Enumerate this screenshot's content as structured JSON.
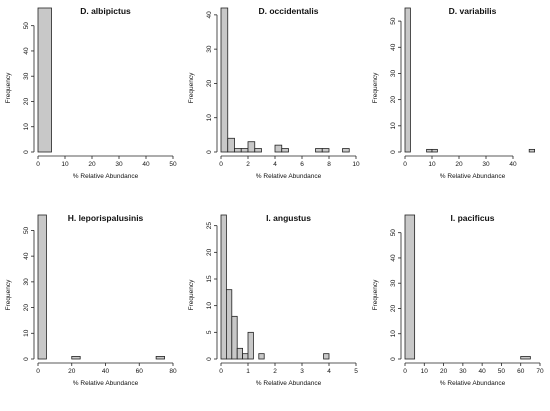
{
  "chart_data": [
    {
      "type": "bar",
      "title": "D. albipictus",
      "xlabel": "% Relative Abundance",
      "ylabel": "Frequency",
      "xlim": [
        0,
        50
      ],
      "ylim": [
        0,
        57
      ],
      "xticks": [
        0,
        10,
        20,
        30,
        40,
        50
      ],
      "yticks": [
        0,
        10,
        20,
        30,
        40,
        50
      ],
      "bins": [
        {
          "x0": 0,
          "x1": 5,
          "count": 57
        }
      ]
    },
    {
      "type": "bar",
      "title": "D. occidentalis",
      "xlabel": "% Relative Abundance",
      "ylabel": "Frequency",
      "xlim": [
        0,
        10
      ],
      "ylim": [
        0,
        42
      ],
      "xticks": [
        0,
        2,
        4,
        6,
        8,
        10
      ],
      "yticks": [
        0,
        10,
        20,
        30,
        40
      ],
      "bins": [
        {
          "x0": 0,
          "x1": 0.5,
          "count": 42
        },
        {
          "x0": 0.5,
          "x1": 1,
          "count": 4
        },
        {
          "x0": 1,
          "x1": 1.5,
          "count": 1
        },
        {
          "x0": 1.5,
          "x1": 2,
          "count": 1
        },
        {
          "x0": 2,
          "x1": 2.5,
          "count": 3
        },
        {
          "x0": 2.5,
          "x1": 3,
          "count": 1
        },
        {
          "x0": 4,
          "x1": 4.5,
          "count": 2
        },
        {
          "x0": 4.5,
          "x1": 5,
          "count": 1
        },
        {
          "x0": 7,
          "x1": 7.5,
          "count": 1
        },
        {
          "x0": 7.5,
          "x1": 8,
          "count": 1
        },
        {
          "x0": 9,
          "x1": 9.5,
          "count": 1
        }
      ]
    },
    {
      "type": "bar",
      "title": "D. variabilis",
      "xlabel": "% Relative Abundance",
      "ylabel": "Frequency",
      "xlim": [
        0,
        50
      ],
      "ylim": [
        0,
        55
      ],
      "xticks": [
        0,
        10,
        20,
        30,
        40
      ],
      "yticks": [
        0,
        10,
        20,
        30,
        40,
        50
      ],
      "bins": [
        {
          "x0": 0,
          "x1": 2,
          "count": 55
        },
        {
          "x0": 8,
          "x1": 10,
          "count": 1
        },
        {
          "x0": 10,
          "x1": 12,
          "count": 1
        },
        {
          "x0": 46,
          "x1": 48,
          "count": 1
        }
      ]
    },
    {
      "type": "bar",
      "title": "H. leporispalusinis",
      "xlabel": "% Relative Abundance",
      "ylabel": "Frequency",
      "xlim": [
        0,
        80
      ],
      "ylim": [
        0,
        56
      ],
      "xticks": [
        0,
        20,
        40,
        60,
        80
      ],
      "yticks": [
        0,
        10,
        20,
        30,
        40,
        50
      ],
      "bins": [
        {
          "x0": 0,
          "x1": 5,
          "count": 56
        },
        {
          "x0": 20,
          "x1": 25,
          "count": 1
        },
        {
          "x0": 70,
          "x1": 75,
          "count": 1
        }
      ]
    },
    {
      "type": "bar",
      "title": "I. angustus",
      "xlabel": "% Relative Abundance",
      "ylabel": "Frequency",
      "xlim": [
        0,
        5
      ],
      "ylim": [
        0,
        27
      ],
      "xticks": [
        0,
        1,
        2,
        3,
        4,
        5
      ],
      "yticks": [
        0,
        5,
        10,
        15,
        20,
        25
      ],
      "bins": [
        {
          "x0": 0,
          "x1": 0.2,
          "count": 27
        },
        {
          "x0": 0.2,
          "x1": 0.4,
          "count": 13
        },
        {
          "x0": 0.4,
          "x1": 0.6,
          "count": 8
        },
        {
          "x0": 0.6,
          "x1": 0.8,
          "count": 2
        },
        {
          "x0": 0.8,
          "x1": 1.0,
          "count": 1
        },
        {
          "x0": 1.0,
          "x1": 1.2,
          "count": 5
        },
        {
          "x0": 1.4,
          "x1": 1.6,
          "count": 1
        },
        {
          "x0": 3.8,
          "x1": 4.0,
          "count": 1
        }
      ]
    },
    {
      "type": "bar",
      "title": "I. pacificus",
      "xlabel": "% Relative Abundance",
      "ylabel": "Frequency",
      "xlim": [
        0,
        70
      ],
      "ylim": [
        0,
        57
      ],
      "xticks": [
        0,
        10,
        20,
        30,
        40,
        50,
        60,
        70
      ],
      "yticks": [
        0,
        10,
        20,
        30,
        40,
        50
      ],
      "bins": [
        {
          "x0": 0,
          "x1": 5,
          "count": 57
        },
        {
          "x0": 60,
          "x1": 65,
          "count": 1
        }
      ]
    }
  ]
}
